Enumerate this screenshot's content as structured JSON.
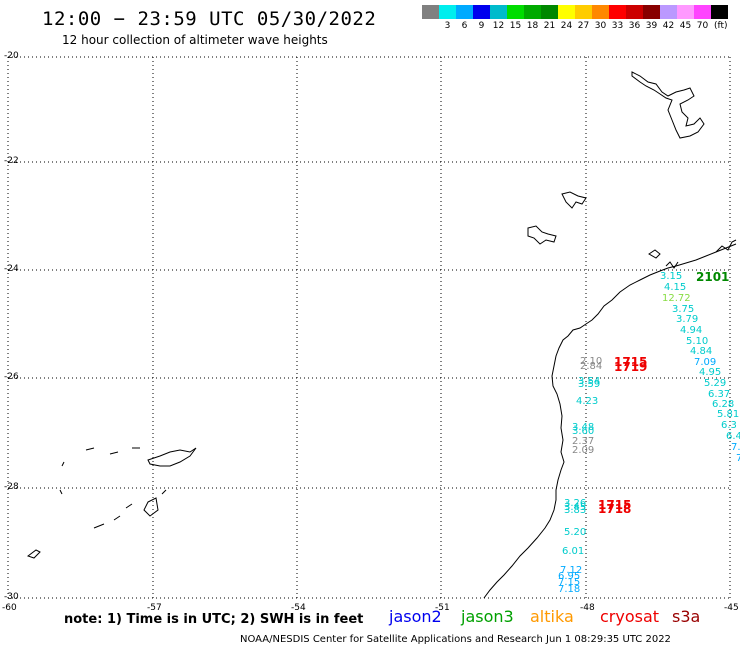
{
  "title": "12:00 − 23:59 UTC 05/30/2022",
  "subtitle": "12 hour collection of altimeter wave heights",
  "footer": {
    "note": "note: 1) Time is in UTC; 2) SWH is in feet",
    "credit": "NOAA/NESDIS Center for Satellite Applications and Research    Jun  1 08:29:35 UTC 2022"
  },
  "satellites": [
    {
      "name": "jason2",
      "color": "#0000ee"
    },
    {
      "name": "jason3",
      "color": "#00a000"
    },
    {
      "name": "altika",
      "color": "#ff9900"
    },
    {
      "name": "cryosat",
      "color": "#ee0000"
    },
    {
      "name": "s3a",
      "color": "#990000"
    }
  ],
  "legend": {
    "unit": "(ft)",
    "swatches": [
      {
        "color": "#808080",
        "label": ""
      },
      {
        "color": "#00eeee",
        "label": "3"
      },
      {
        "color": "#00aaff",
        "label": "6"
      },
      {
        "color": "#0000ee",
        "label": "9"
      },
      {
        "color": "#00bbcc",
        "label": "12"
      },
      {
        "color": "#00dd00",
        "label": "15"
      },
      {
        "color": "#00aa00",
        "label": "18"
      },
      {
        "color": "#008800",
        "label": "21"
      },
      {
        "color": "#ffff00",
        "label": "24"
      },
      {
        "color": "#ffcc00",
        "label": "27"
      },
      {
        "color": "#ff8800",
        "label": "30"
      },
      {
        "color": "#ff0000",
        "label": "33"
      },
      {
        "color": "#cc0000",
        "label": "36"
      },
      {
        "color": "#880000",
        "label": "39"
      },
      {
        "color": "#bb99ff",
        "label": "42"
      },
      {
        "color": "#ff99ff",
        "label": "45"
      },
      {
        "color": "#ff44ff",
        "label": "70"
      },
      {
        "color": "#000000",
        "label": ""
      }
    ]
  },
  "map": {
    "lat_labels": [
      "-20",
      "-22",
      "-24",
      "-26",
      "-28",
      "-30"
    ],
    "lon_labels": [
      "-60",
      "-57",
      "-54",
      "-51",
      "-48",
      "-45"
    ]
  },
  "observations": [
    {
      "text": "3.15",
      "color": "#00cccc"
    },
    {
      "text": "4.15",
      "color": "#00cccc"
    },
    {
      "text": "12.72",
      "color": "#88dd44"
    },
    {
      "text": "3.75",
      "color": "#00cccc"
    },
    {
      "text": "3.79",
      "color": "#00cccc"
    },
    {
      "text": "4.94",
      "color": "#00cccc"
    },
    {
      "text": "5.10",
      "color": "#00cccc"
    },
    {
      "text": "4.84",
      "color": "#00cccc"
    },
    {
      "text": "7.09",
      "color": "#00aaff"
    },
    {
      "text": "4.95",
      "color": "#00cccc"
    },
    {
      "text": "5.29",
      "color": "#00cccc"
    },
    {
      "text": "6.37",
      "color": "#00cccc"
    },
    {
      "text": "6.28",
      "color": "#00cccc"
    },
    {
      "text": "5.81",
      "color": "#00cccc"
    },
    {
      "text": "6.3",
      "color": "#00cccc"
    },
    {
      "text": "6.4",
      "color": "#00cccc"
    },
    {
      "text": "7.2",
      "color": "#00aaff"
    },
    {
      "text": "7",
      "color": "#00aaff"
    },
    {
      "text": "2.10",
      "color": "#888888"
    },
    {
      "text": "2.84",
      "color": "#888888"
    },
    {
      "text": "3.54",
      "color": "#00cccc"
    },
    {
      "text": "3.59",
      "color": "#00cccc"
    },
    {
      "text": "4.23",
      "color": "#00cccc"
    },
    {
      "text": "3.48",
      "color": "#00cccc"
    },
    {
      "text": "3.60",
      "color": "#00cccc"
    },
    {
      "text": "2.37",
      "color": "#888888"
    },
    {
      "text": "2.09",
      "color": "#888888"
    },
    {
      "text": "3.26",
      "color": "#00cccc"
    },
    {
      "text": "3.45",
      "color": "#00cccc"
    },
    {
      "text": "3.83",
      "color": "#00cccc"
    },
    {
      "text": "5.20",
      "color": "#00cccc"
    },
    {
      "text": "6.01",
      "color": "#00cccc"
    },
    {
      "text": "7.12",
      "color": "#00aaff"
    },
    {
      "text": "6.95",
      "color": "#00aaff"
    },
    {
      "text": "7.15",
      "color": "#00aaff"
    },
    {
      "text": "7.18",
      "color": "#00aaff"
    }
  ],
  "pass_times": [
    {
      "text": "2101",
      "color": "#008800"
    },
    {
      "text": "1715",
      "color": "#ee0000"
    },
    {
      "text": "1719",
      "color": "#ee0000"
    },
    {
      "text": "1715",
      "color": "#ee0000"
    },
    {
      "text": "1718",
      "color": "#ee0000"
    }
  ]
}
